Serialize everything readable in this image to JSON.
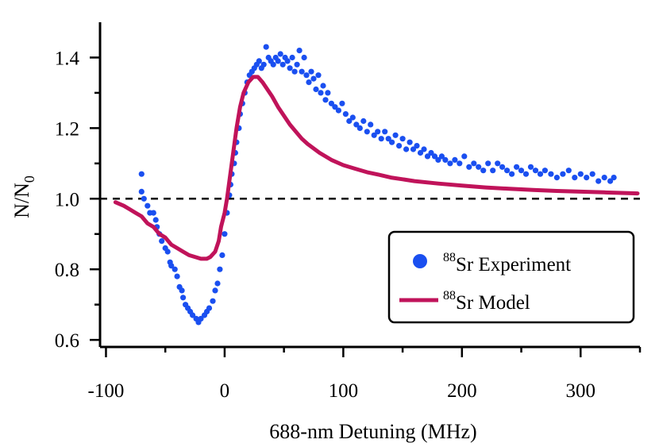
{
  "chart_data": {
    "type": "scatter",
    "title": "",
    "xlabel": "688-nm Detuning (MHz)",
    "ylabel": {
      "main": "N/N",
      "sub": "0"
    },
    "xlim": [
      -105,
      350
    ],
    "ylim": [
      0.58,
      1.5
    ],
    "x_ticks": [
      -100,
      0,
      100,
      200,
      300
    ],
    "x_tick_labels": [
      "-100",
      "0",
      "100",
      "200",
      "300"
    ],
    "y_ticks": [
      0.6,
      0.8,
      1.0,
      1.2,
      1.4
    ],
    "y_tick_labels": [
      "0.6",
      "0.8",
      "1.0",
      "1.2",
      "1.4"
    ],
    "reference_line": {
      "y": 1.0,
      "style": "dashed"
    },
    "legend_position": "bottom-right",
    "series": [
      {
        "name": {
          "sup": "88",
          "text": "Sr Experiment"
        },
        "type": "scatter",
        "color": "#1a4ff0",
        "points": [
          [
            -70,
            1.07
          ],
          [
            -70,
            1.02
          ],
          [
            -68,
            1.0
          ],
          [
            -65,
            0.98
          ],
          [
            -63,
            0.96
          ],
          [
            -60,
            0.96
          ],
          [
            -58,
            0.94
          ],
          [
            -57,
            0.92
          ],
          [
            -55,
            0.9
          ],
          [
            -53,
            0.88
          ],
          [
            -50,
            0.86
          ],
          [
            -48,
            0.85
          ],
          [
            -46,
            0.82
          ],
          [
            -45,
            0.81
          ],
          [
            -42,
            0.8
          ],
          [
            -40,
            0.78
          ],
          [
            -38,
            0.75
          ],
          [
            -36,
            0.74
          ],
          [
            -35,
            0.72
          ],
          [
            -33,
            0.7
          ],
          [
            -31,
            0.69
          ],
          [
            -29,
            0.68
          ],
          [
            -27,
            0.67
          ],
          [
            -24,
            0.66
          ],
          [
            -22,
            0.65
          ],
          [
            -20,
            0.66
          ],
          [
            -17,
            0.67
          ],
          [
            -15,
            0.68
          ],
          [
            -13,
            0.69
          ],
          [
            -10,
            0.71
          ],
          [
            -8,
            0.74
          ],
          [
            -6,
            0.76
          ],
          [
            -4,
            0.8
          ],
          [
            -2,
            0.84
          ],
          [
            0,
            0.9
          ],
          [
            2,
            0.96
          ],
          [
            4,
            1.01
          ],
          [
            5,
            1.04
          ],
          [
            6,
            1.07
          ],
          [
            8,
            1.1
          ],
          [
            9,
            1.13
          ],
          [
            10,
            1.16
          ],
          [
            12,
            1.2
          ],
          [
            13,
            1.24
          ],
          [
            15,
            1.27
          ],
          [
            17,
            1.3
          ],
          [
            19,
            1.33
          ],
          [
            21,
            1.35
          ],
          [
            23,
            1.36
          ],
          [
            25,
            1.37
          ],
          [
            27,
            1.38
          ],
          [
            29,
            1.39
          ],
          [
            31,
            1.37
          ],
          [
            33,
            1.38
          ],
          [
            35,
            1.43
          ],
          [
            37,
            1.4
          ],
          [
            39,
            1.39
          ],
          [
            41,
            1.38
          ],
          [
            43,
            1.4
          ],
          [
            45,
            1.39
          ],
          [
            47,
            1.41
          ],
          [
            49,
            1.38
          ],
          [
            51,
            1.4
          ],
          [
            53,
            1.39
          ],
          [
            55,
            1.37
          ],
          [
            57,
            1.4
          ],
          [
            59,
            1.36
          ],
          [
            61,
            1.38
          ],
          [
            63,
            1.42
          ],
          [
            65,
            1.36
          ],
          [
            67,
            1.4
          ],
          [
            69,
            1.35
          ],
          [
            71,
            1.33
          ],
          [
            73,
            1.36
          ],
          [
            75,
            1.34
          ],
          [
            77,
            1.31
          ],
          [
            79,
            1.35
          ],
          [
            81,
            1.3
          ],
          [
            83,
            1.32
          ],
          [
            85,
            1.28
          ],
          [
            87,
            1.3
          ],
          [
            90,
            1.27
          ],
          [
            93,
            1.26
          ],
          [
            96,
            1.25
          ],
          [
            99,
            1.27
          ],
          [
            102,
            1.24
          ],
          [
            105,
            1.22
          ],
          [
            108,
            1.23
          ],
          [
            111,
            1.21
          ],
          [
            114,
            1.2
          ],
          [
            117,
            1.22
          ],
          [
            120,
            1.19
          ],
          [
            123,
            1.21
          ],
          [
            126,
            1.18
          ],
          [
            129,
            1.19
          ],
          [
            132,
            1.17
          ],
          [
            135,
            1.19
          ],
          [
            138,
            1.17
          ],
          [
            141,
            1.16
          ],
          [
            144,
            1.18
          ],
          [
            147,
            1.15
          ],
          [
            150,
            1.17
          ],
          [
            153,
            1.14
          ],
          [
            156,
            1.16
          ],
          [
            159,
            1.14
          ],
          [
            162,
            1.15
          ],
          [
            165,
            1.13
          ],
          [
            168,
            1.14
          ],
          [
            171,
            1.12
          ],
          [
            174,
            1.13
          ],
          [
            177,
            1.12
          ],
          [
            180,
            1.11
          ],
          [
            183,
            1.12
          ],
          [
            186,
            1.11
          ],
          [
            190,
            1.1
          ],
          [
            194,
            1.11
          ],
          [
            198,
            1.1
          ],
          [
            202,
            1.12
          ],
          [
            206,
            1.09
          ],
          [
            210,
            1.1
          ],
          [
            214,
            1.09
          ],
          [
            218,
            1.08
          ],
          [
            222,
            1.1
          ],
          [
            226,
            1.08
          ],
          [
            230,
            1.1
          ],
          [
            234,
            1.09
          ],
          [
            238,
            1.08
          ],
          [
            242,
            1.07
          ],
          [
            246,
            1.09
          ],
          [
            250,
            1.08
          ],
          [
            254,
            1.07
          ],
          [
            258,
            1.09
          ],
          [
            262,
            1.08
          ],
          [
            266,
            1.07
          ],
          [
            270,
            1.08
          ],
          [
            275,
            1.07
          ],
          [
            280,
            1.06
          ],
          [
            285,
            1.07
          ],
          [
            290,
            1.08
          ],
          [
            295,
            1.06
          ],
          [
            300,
            1.07
          ],
          [
            305,
            1.06
          ],
          [
            310,
            1.07
          ],
          [
            315,
            1.05
          ],
          [
            320,
            1.06
          ],
          [
            325,
            1.05
          ],
          [
            328,
            1.06
          ]
        ]
      },
      {
        "name": {
          "sup": "88",
          "text": "Sr Model"
        },
        "type": "line",
        "color": "#c0135a",
        "points": [
          [
            -92,
            0.99
          ],
          [
            -85,
            0.98
          ],
          [
            -80,
            0.97
          ],
          [
            -75,
            0.96
          ],
          [
            -70,
            0.95
          ],
          [
            -65,
            0.93
          ],
          [
            -60,
            0.92
          ],
          [
            -55,
            0.9
          ],
          [
            -50,
            0.89
          ],
          [
            -45,
            0.87
          ],
          [
            -40,
            0.86
          ],
          [
            -35,
            0.85
          ],
          [
            -30,
            0.84
          ],
          [
            -25,
            0.835
          ],
          [
            -20,
            0.83
          ],
          [
            -15,
            0.83
          ],
          [
            -12,
            0.835
          ],
          [
            -8,
            0.85
          ],
          [
            -5,
            0.88
          ],
          [
            -3,
            0.92
          ],
          [
            0,
            0.96
          ],
          [
            2,
            1.0
          ],
          [
            4,
            1.05
          ],
          [
            6,
            1.1
          ],
          [
            8,
            1.15
          ],
          [
            10,
            1.2
          ],
          [
            13,
            1.26
          ],
          [
            16,
            1.3
          ],
          [
            20,
            1.33
          ],
          [
            24,
            1.345
          ],
          [
            28,
            1.345
          ],
          [
            32,
            1.33
          ],
          [
            36,
            1.31
          ],
          [
            40,
            1.29
          ],
          [
            45,
            1.26
          ],
          [
            50,
            1.235
          ],
          [
            55,
            1.21
          ],
          [
            60,
            1.19
          ],
          [
            65,
            1.17
          ],
          [
            70,
            1.155
          ],
          [
            80,
            1.13
          ],
          [
            90,
            1.11
          ],
          [
            100,
            1.095
          ],
          [
            110,
            1.085
          ],
          [
            120,
            1.075
          ],
          [
            130,
            1.068
          ],
          [
            140,
            1.06
          ],
          [
            150,
            1.055
          ],
          [
            160,
            1.05
          ],
          [
            180,
            1.043
          ],
          [
            200,
            1.037
          ],
          [
            220,
            1.032
          ],
          [
            240,
            1.028
          ],
          [
            260,
            1.025
          ],
          [
            280,
            1.022
          ],
          [
            300,
            1.02
          ],
          [
            320,
            1.018
          ],
          [
            340,
            1.016
          ],
          [
            348,
            1.015
          ]
        ]
      }
    ]
  }
}
